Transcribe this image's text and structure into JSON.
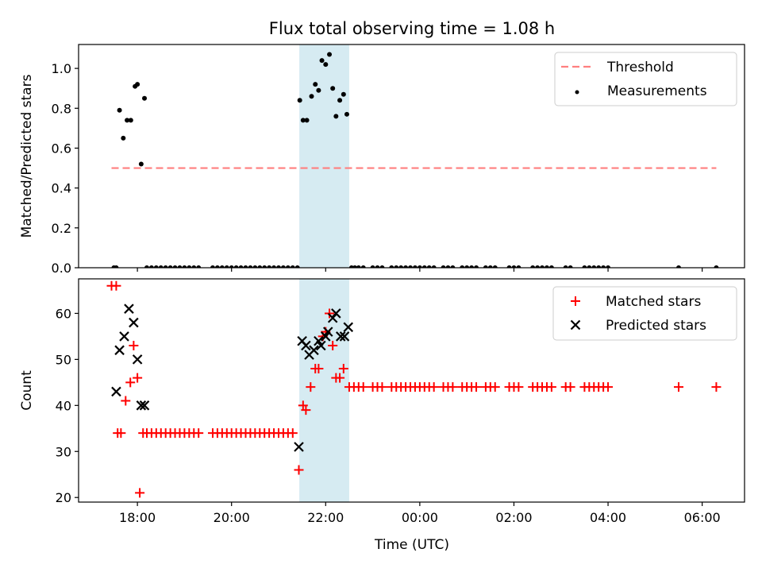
{
  "chart_data": {
    "title": "Flux total observing time = 1.08 h",
    "xlabel": "Time (UTC)",
    "x_unit": "hours relative to 00:00 UTC (negative = previous day)",
    "xlim": [
      -7.25,
      6.9
    ],
    "xticks": [
      {
        "value": -6,
        "label": "18:00"
      },
      {
        "value": -4,
        "label": "20:00"
      },
      {
        "value": -2,
        "label": "22:00"
      },
      {
        "value": 0,
        "label": "00:00"
      },
      {
        "value": 2,
        "label": "02:00"
      },
      {
        "value": 4,
        "label": "04:00"
      },
      {
        "value": 6,
        "label": "06:00"
      }
    ],
    "shaded_span": [
      -2.56,
      -1.5
    ],
    "shade_color": "#add8e6",
    "panels": [
      {
        "type": "scatter",
        "ylabel": "Matched/Predicted stars",
        "ylim": [
          0.0,
          1.12
        ],
        "yticks": [
          0.0,
          0.2,
          0.4,
          0.6,
          0.8,
          1.0
        ],
        "ytick_labels": [
          "0.0",
          "0.2",
          "0.4",
          "0.6",
          "0.8",
          "1.0"
        ],
        "threshold": {
          "name": "Threshold",
          "value": 0.5,
          "x_range": [
            -6.55,
            6.3
          ],
          "color": "#ff7f7f"
        },
        "legend": {
          "position": "top-right",
          "entries": [
            "Threshold",
            "Measurements"
          ]
        },
        "series": [
          {
            "name": "Measurements",
            "marker": "dot",
            "color": "#000000",
            "x": [
              -6.5,
              -6.45,
              -6.38,
              -6.3,
              -6.22,
              -6.14,
              -6.05,
              -6.0,
              -5.92,
              -5.85,
              -5.8,
              -5.7,
              -5.6,
              -5.5,
              -5.4,
              -5.3,
              -5.2,
              -5.1,
              -5.0,
              -4.9,
              -4.8,
              -4.7,
              -4.4,
              -4.3,
              -4.2,
              -4.1,
              -4.0,
              -3.9,
              -3.8,
              -3.7,
              -3.6,
              -3.5,
              -3.4,
              -3.3,
              -3.2,
              -3.1,
              -3.0,
              -2.9,
              -2.8,
              -2.7,
              -2.6,
              -2.55,
              -2.48,
              -2.4,
              -2.3,
              -2.22,
              -2.15,
              -2.08,
              -2.0,
              -1.92,
              -1.85,
              -1.78,
              -1.7,
              -1.62,
              -1.55,
              -1.45,
              -1.38,
              -1.3,
              -1.2,
              -1.0,
              -0.9,
              -0.8,
              -0.6,
              -0.5,
              -0.4,
              -0.3,
              -0.2,
              -0.1,
              0.0,
              0.1,
              0.2,
              0.3,
              0.5,
              0.6,
              0.7,
              0.9,
              1.0,
              1.1,
              1.2,
              1.4,
              1.5,
              1.6,
              1.9,
              2.0,
              2.1,
              2.4,
              2.5,
              2.6,
              2.7,
              2.8,
              3.1,
              3.2,
              3.5,
              3.6,
              3.7,
              3.8,
              3.9,
              4.0,
              5.5,
              6.3
            ],
            "y": [
              0.0,
              0.0,
              0.79,
              0.65,
              0.74,
              0.74,
              0.91,
              0.92,
              0.52,
              0.85,
              0.0,
              0.0,
              0.0,
              0.0,
              0.0,
              0.0,
              0.0,
              0.0,
              0.0,
              0.0,
              0.0,
              0.0,
              0.0,
              0.0,
              0.0,
              0.0,
              0.0,
              0.0,
              0.0,
              0.0,
              0.0,
              0.0,
              0.0,
              0.0,
              0.0,
              0.0,
              0.0,
              0.0,
              0.0,
              0.0,
              0.0,
              0.84,
              0.74,
              0.74,
              0.86,
              0.92,
              0.89,
              1.04,
              1.02,
              1.07,
              0.9,
              0.76,
              0.84,
              0.87,
              0.77,
              0.0,
              0.0,
              0.0,
              0.0,
              0.0,
              0.0,
              0.0,
              0.0,
              0.0,
              0.0,
              0.0,
              0.0,
              0.0,
              0.0,
              0.0,
              0.0,
              0.0,
              0.0,
              0.0,
              0.0,
              0.0,
              0.0,
              0.0,
              0.0,
              0.0,
              0.0,
              0.0,
              0.0,
              0.0,
              0.0,
              0.0,
              0.0,
              0.0,
              0.0,
              0.0,
              0.0,
              0.0,
              0.0,
              0.0,
              0.0,
              0.0,
              0.0,
              0.0,
              0.0,
              0.0
            ]
          }
        ]
      },
      {
        "type": "scatter",
        "ylabel": "Count",
        "ylim": [
          19,
          67.5
        ],
        "yticks": [
          20,
          30,
          40,
          50,
          60
        ],
        "ytick_labels": [
          "20",
          "30",
          "40",
          "50",
          "60"
        ],
        "legend": {
          "position": "top-right",
          "entries": [
            "Matched stars",
            "Predicted stars"
          ]
        },
        "series": [
          {
            "name": "Matched stars",
            "marker": "plus",
            "color": "#ff0000",
            "x": [
              -6.55,
              -6.45,
              -6.42,
              -6.35,
              -6.25,
              -6.15,
              -6.08,
              -6.0,
              -5.95,
              -5.88,
              -5.8,
              -5.7,
              -5.6,
              -5.5,
              -5.4,
              -5.3,
              -5.2,
              -5.1,
              -5.0,
              -4.9,
              -4.8,
              -4.7,
              -4.4,
              -4.3,
              -4.2,
              -4.1,
              -4.0,
              -3.9,
              -3.8,
              -3.7,
              -3.6,
              -3.5,
              -3.4,
              -3.3,
              -3.2,
              -3.1,
              -3.0,
              -2.9,
              -2.8,
              -2.7,
              -2.57,
              -2.48,
              -2.42,
              -2.32,
              -2.22,
              -2.15,
              -2.06,
              -2.0,
              -1.92,
              -1.85,
              -1.78,
              -1.7,
              -1.62,
              -1.5,
              -1.4,
              -1.3,
              -1.2,
              -1.0,
              -0.9,
              -0.8,
              -0.6,
              -0.5,
              -0.4,
              -0.3,
              -0.2,
              -0.1,
              0.0,
              0.1,
              0.2,
              0.3,
              0.5,
              0.6,
              0.7,
              0.9,
              1.0,
              1.1,
              1.2,
              1.4,
              1.5,
              1.6,
              1.9,
              2.0,
              2.1,
              2.4,
              2.5,
              2.6,
              2.7,
              2.8,
              3.1,
              3.2,
              3.5,
              3.6,
              3.7,
              3.8,
              3.9,
              4.0,
              5.5,
              6.3
            ],
            "y": [
              66,
              66,
              34,
              34,
              41,
              45,
              53,
              46,
              21,
              34,
              34,
              34,
              34,
              34,
              34,
              34,
              34,
              34,
              34,
              34,
              34,
              34,
              34,
              34,
              34,
              34,
              34,
              34,
              34,
              34,
              34,
              34,
              34,
              34,
              34,
              34,
              34,
              34,
              34,
              34,
              26,
              40,
              39,
              44,
              48,
              48,
              55,
              56,
              60,
              53,
              46,
              46,
              48,
              44,
              44,
              44,
              44,
              44,
              44,
              44,
              44,
              44,
              44,
              44,
              44,
              44,
              44,
              44,
              44,
              44,
              44,
              44,
              44,
              44,
              44,
              44,
              44,
              44,
              44,
              44,
              44,
              44,
              44,
              44,
              44,
              44,
              44,
              44,
              44,
              44,
              44,
              44,
              44,
              44,
              44,
              44,
              44,
              44
            ]
          },
          {
            "name": "Predicted stars",
            "marker": "x",
            "color": "#000000",
            "x": [
              -6.45,
              -6.38,
              -6.28,
              -6.18,
              -6.08,
              -6.0,
              -5.92,
              -5.85,
              -2.57,
              -2.5,
              -2.42,
              -2.35,
              -2.25,
              -2.15,
              -2.1,
              -2.0,
              -1.95,
              -1.85,
              -1.78,
              -1.68,
              -1.6,
              -1.52
            ],
            "y": [
              43,
              52,
              55,
              61,
              58,
              50,
              40,
              40,
              31,
              54,
              53,
              51,
              52,
              54,
              53,
              55,
              56,
              59,
              60,
              55,
              55,
              57
            ]
          }
        ]
      }
    ]
  }
}
